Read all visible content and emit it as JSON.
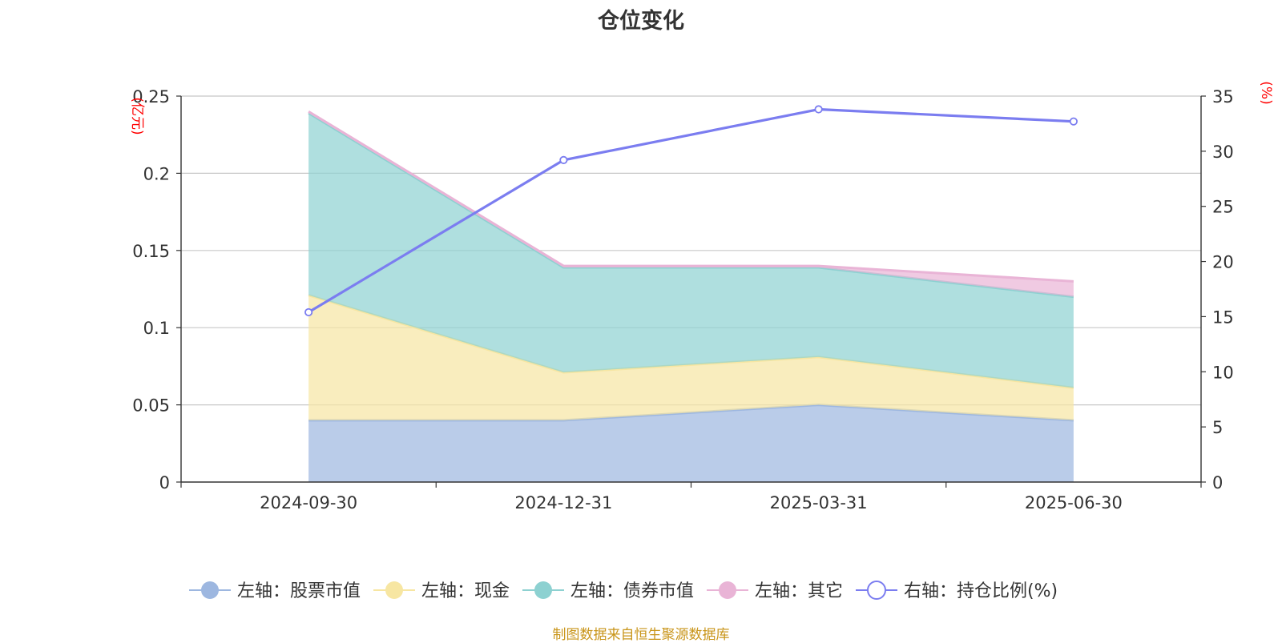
{
  "chart_data": {
    "type": "area",
    "title": "仓位变化",
    "categories": [
      "2024-09-30",
      "2024-12-31",
      "2025-03-31",
      "2025-06-30"
    ],
    "left_axis": {
      "unit": "(亿元)",
      "ylim": [
        0,
        0.25
      ],
      "ticks": [
        "0",
        "0.05",
        "0.1",
        "0.15",
        "0.2",
        "0.25"
      ]
    },
    "right_axis": {
      "unit": "(%)",
      "ylim": [
        0,
        35
      ],
      "ticks": [
        "0",
        "5",
        "10",
        "15",
        "20",
        "25",
        "30",
        "35"
      ]
    },
    "stacked": true,
    "series": [
      {
        "name": "左轴：股票市值",
        "axis": "left",
        "type": "area",
        "values": [
          0.04,
          0.04,
          0.05,
          0.04
        ],
        "color": "#9db7e0"
      },
      {
        "name": "左轴：现金",
        "axis": "left",
        "type": "area",
        "values": [
          0.081,
          0.031,
          0.031,
          0.021
        ],
        "color": "#f7e6a2"
      },
      {
        "name": "左轴：债券市值",
        "axis": "left",
        "type": "area",
        "values": [
          0.118,
          0.068,
          0.058,
          0.059
        ],
        "color": "#8dd1d1"
      },
      {
        "name": "左轴：其它",
        "axis": "left",
        "type": "area",
        "values": [
          0.001,
          0.001,
          0.001,
          0.01
        ],
        "color": "#e9b4d6"
      },
      {
        "name": "右轴：持仓比例(%)",
        "axis": "right",
        "type": "line",
        "values": [
          15.4,
          29.2,
          33.8,
          32.7
        ],
        "color": "#7b7df0"
      }
    ],
    "grid": true,
    "legend_position": "bottom"
  },
  "source_note": "制图数据来自恒生聚源数据库"
}
